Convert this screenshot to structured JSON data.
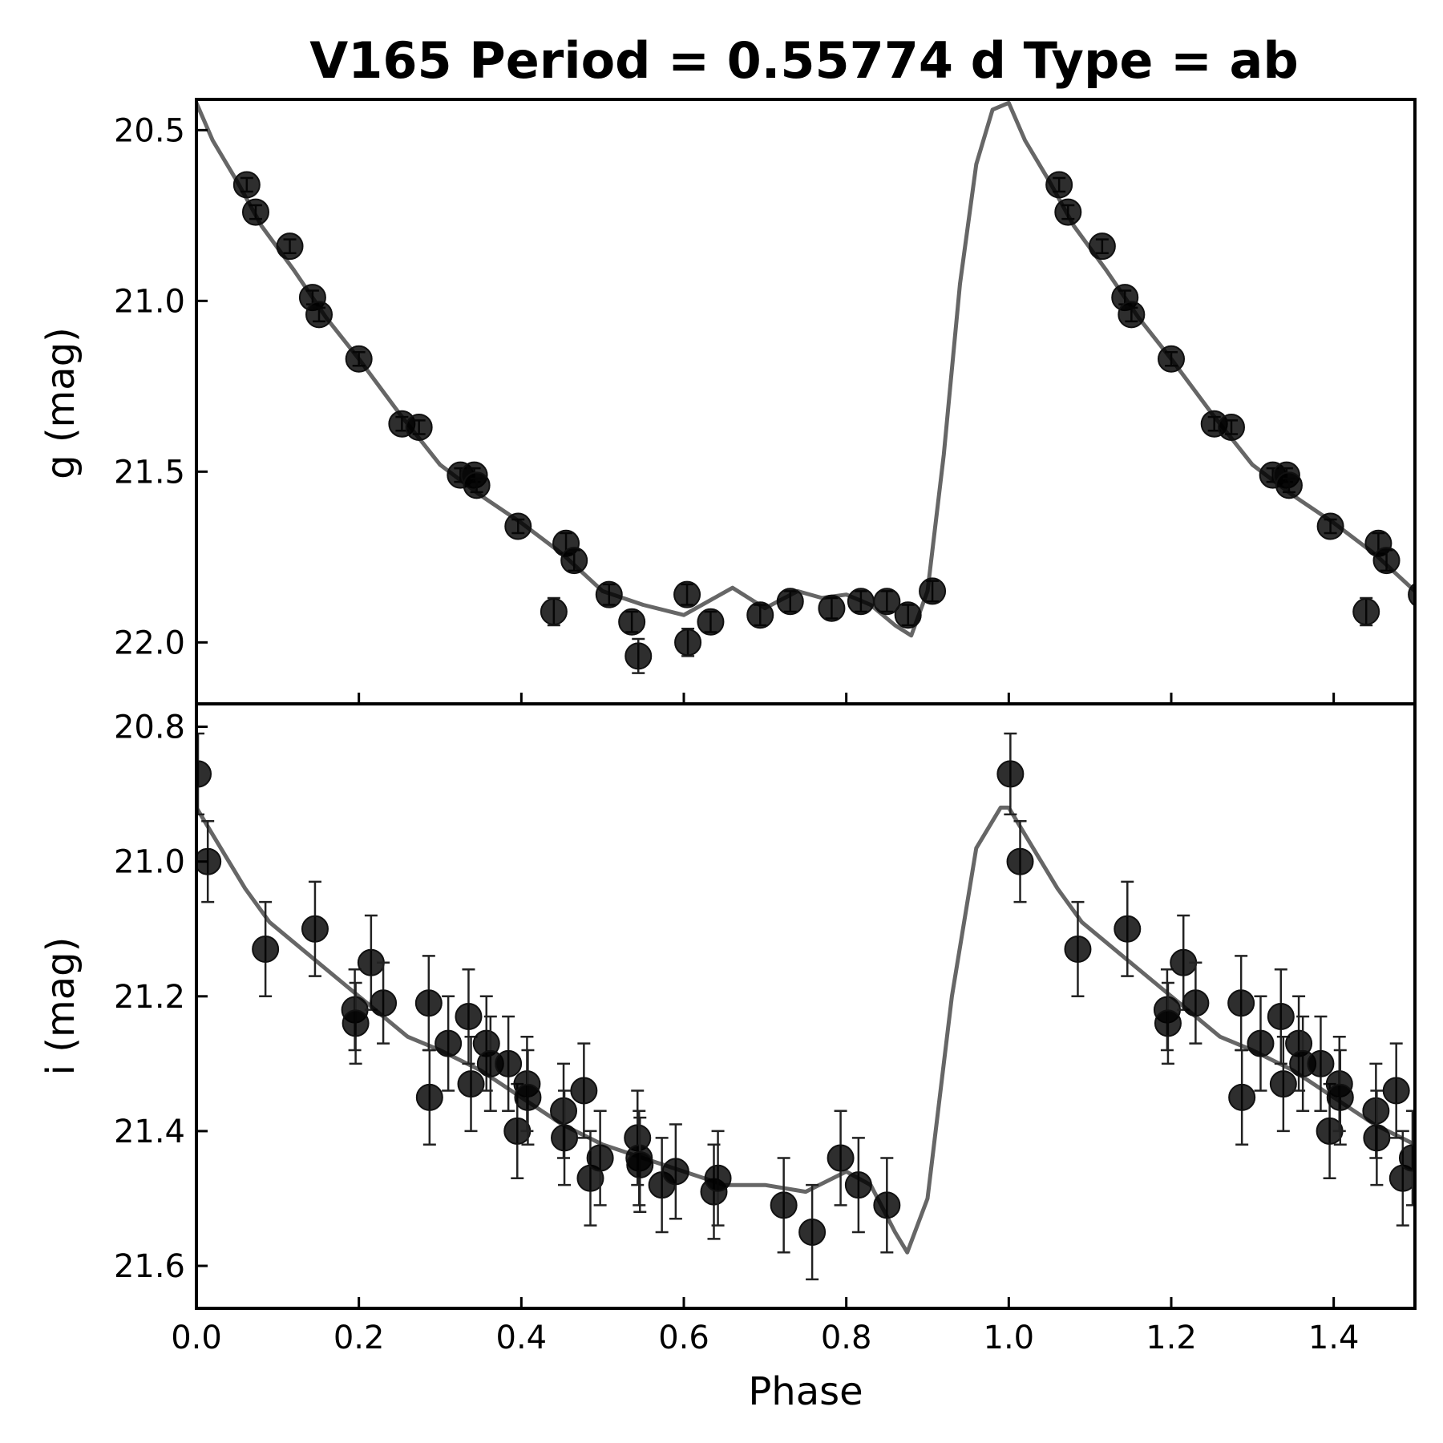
{
  "chart_data": [
    {
      "type": "scatter",
      "panel": "top",
      "title": "V165   Period = 0.55774 d   Type = ab",
      "ylabel": "g (mag)",
      "xlabel": "",
      "xlim": [
        0.0,
        1.5
      ],
      "ylim": [
        22.18,
        20.41
      ],
      "y_inverted": true,
      "yticks": [
        20.5,
        21.0,
        21.5,
        22.0
      ],
      "ytick_labels": [
        "20.5",
        "21.0",
        "21.5",
        "22.0"
      ],
      "xticks": [
        0.0,
        0.2,
        0.4,
        0.6,
        0.8,
        1.0,
        1.2,
        1.4
      ],
      "model_curve": {
        "phase": [
          0.0,
          0.02,
          0.05,
          0.08,
          0.12,
          0.16,
          0.2,
          0.25,
          0.3,
          0.35,
          0.4,
          0.45,
          0.5,
          0.55,
          0.6,
          0.63,
          0.66,
          0.7,
          0.74,
          0.77,
          0.8,
          0.83,
          0.86,
          0.88,
          0.9,
          0.92,
          0.94,
          0.96,
          0.98,
          1.0
        ],
        "mag": [
          20.42,
          20.53,
          20.65,
          20.78,
          20.91,
          21.05,
          21.17,
          21.33,
          21.48,
          21.57,
          21.65,
          21.74,
          21.85,
          21.89,
          21.92,
          21.88,
          21.84,
          21.9,
          21.85,
          21.87,
          21.86,
          21.89,
          21.95,
          21.98,
          21.85,
          21.45,
          20.95,
          20.6,
          20.44,
          20.42
        ]
      },
      "points": [
        {
          "phase": 0.062,
          "mag": 20.66,
          "err": 0.02
        },
        {
          "phase": 0.073,
          "mag": 20.74,
          "err": 0.02
        },
        {
          "phase": 0.115,
          "mag": 20.84,
          "err": 0.02
        },
        {
          "phase": 0.143,
          "mag": 20.99,
          "err": 0.02
        },
        {
          "phase": 0.151,
          "mag": 21.04,
          "err": 0.02
        },
        {
          "phase": 0.2,
          "mag": 21.17,
          "err": 0.02
        },
        {
          "phase": 0.253,
          "mag": 21.36,
          "err": 0.02
        },
        {
          "phase": 0.274,
          "mag": 21.37,
          "err": 0.02
        },
        {
          "phase": 0.325,
          "mag": 21.51,
          "err": 0.02
        },
        {
          "phase": 0.342,
          "mag": 21.51,
          "err": 0.02
        },
        {
          "phase": 0.345,
          "mag": 21.54,
          "err": 0.02
        },
        {
          "phase": 0.396,
          "mag": 21.66,
          "err": 0.02
        },
        {
          "phase": 0.44,
          "mag": 21.91,
          "err": 0.04
        },
        {
          "phase": 0.455,
          "mag": 21.71,
          "err": 0.03
        },
        {
          "phase": 0.465,
          "mag": 21.76,
          "err": 0.03
        },
        {
          "phase": 0.508,
          "mag": 21.86,
          "err": 0.03
        },
        {
          "phase": 0.536,
          "mag": 21.94,
          "err": 0.03
        },
        {
          "phase": 0.544,
          "mag": 22.04,
          "err": 0.05
        },
        {
          "phase": 0.604,
          "mag": 21.86,
          "err": 0.03
        },
        {
          "phase": 0.605,
          "mag": 22.0,
          "err": 0.04
        },
        {
          "phase": 0.633,
          "mag": 21.94,
          "err": 0.03
        },
        {
          "phase": 0.694,
          "mag": 21.92,
          "err": 0.03
        },
        {
          "phase": 0.731,
          "mag": 21.88,
          "err": 0.03
        },
        {
          "phase": 0.782,
          "mag": 21.9,
          "err": 0.03
        },
        {
          "phase": 0.818,
          "mag": 21.88,
          "err": 0.03
        },
        {
          "phase": 0.85,
          "mag": 21.88,
          "err": 0.03
        },
        {
          "phase": 0.876,
          "mag": 21.92,
          "err": 0.03
        },
        {
          "phase": 0.906,
          "mag": 21.85,
          "err": 0.03
        }
      ]
    },
    {
      "type": "scatter",
      "panel": "bottom",
      "title": "",
      "ylabel": "i (mag)",
      "xlabel": "Phase",
      "xlim": [
        0.0,
        1.5
      ],
      "ylim": [
        21.663,
        20.766
      ],
      "y_inverted": true,
      "yticks": [
        20.8,
        21.0,
        21.2,
        21.4,
        21.6
      ],
      "ytick_labels": [
        "20.8",
        "21.0",
        "21.2",
        "21.4",
        "21.6"
      ],
      "xticks": [
        0.0,
        0.2,
        0.4,
        0.6,
        0.8,
        1.0,
        1.2,
        1.4
      ],
      "xtick_labels": [
        "0.0",
        "0.2",
        "0.4",
        "0.6",
        "0.8",
        "1.0",
        "1.2",
        "1.4"
      ],
      "model_curve": {
        "phase": [
          0.0,
          0.03,
          0.06,
          0.09,
          0.12,
          0.15,
          0.18,
          0.22,
          0.26,
          0.3,
          0.35,
          0.4,
          0.45,
          0.5,
          0.55,
          0.6,
          0.65,
          0.7,
          0.75,
          0.8,
          0.83,
          0.86,
          0.875,
          0.9,
          0.93,
          0.96,
          0.99,
          1.0
        ],
        "mag": [
          20.92,
          20.98,
          21.04,
          21.09,
          21.12,
          21.15,
          21.18,
          21.22,
          21.26,
          21.28,
          21.31,
          21.35,
          21.39,
          21.42,
          21.44,
          21.46,
          21.48,
          21.48,
          21.49,
          21.46,
          21.48,
          21.55,
          21.58,
          21.5,
          21.2,
          20.98,
          20.92,
          20.92
        ]
      },
      "points": [
        {
          "phase": 0.002,
          "mag": 20.87,
          "err": 0.06
        },
        {
          "phase": 0.014,
          "mag": 21.0,
          "err": 0.06
        },
        {
          "phase": 0.085,
          "mag": 21.13,
          "err": 0.07
        },
        {
          "phase": 0.146,
          "mag": 21.1,
          "err": 0.07
        },
        {
          "phase": 0.195,
          "mag": 21.22,
          "err": 0.06
        },
        {
          "phase": 0.196,
          "mag": 21.24,
          "err": 0.06
        },
        {
          "phase": 0.215,
          "mag": 21.15,
          "err": 0.07
        },
        {
          "phase": 0.23,
          "mag": 21.21,
          "err": 0.06
        },
        {
          "phase": 0.286,
          "mag": 21.21,
          "err": 0.07
        },
        {
          "phase": 0.287,
          "mag": 21.35,
          "err": 0.07
        },
        {
          "phase": 0.31,
          "mag": 21.27,
          "err": 0.07
        },
        {
          "phase": 0.335,
          "mag": 21.23,
          "err": 0.07
        },
        {
          "phase": 0.338,
          "mag": 21.33,
          "err": 0.07
        },
        {
          "phase": 0.357,
          "mag": 21.27,
          "err": 0.07
        },
        {
          "phase": 0.362,
          "mag": 21.3,
          "err": 0.07
        },
        {
          "phase": 0.384,
          "mag": 21.3,
          "err": 0.07
        },
        {
          "phase": 0.395,
          "mag": 21.4,
          "err": 0.07
        },
        {
          "phase": 0.407,
          "mag": 21.33,
          "err": 0.07
        },
        {
          "phase": 0.408,
          "mag": 21.35,
          "err": 0.07
        },
        {
          "phase": 0.452,
          "mag": 21.37,
          "err": 0.07
        },
        {
          "phase": 0.453,
          "mag": 21.41,
          "err": 0.07
        },
        {
          "phase": 0.477,
          "mag": 21.34,
          "err": 0.07
        },
        {
          "phase": 0.485,
          "mag": 21.47,
          "err": 0.07
        },
        {
          "phase": 0.497,
          "mag": 21.44,
          "err": 0.07
        },
        {
          "phase": 0.543,
          "mag": 21.41,
          "err": 0.07
        },
        {
          "phase": 0.545,
          "mag": 21.44,
          "err": 0.07
        },
        {
          "phase": 0.546,
          "mag": 21.45,
          "err": 0.07
        },
        {
          "phase": 0.573,
          "mag": 21.48,
          "err": 0.07
        },
        {
          "phase": 0.59,
          "mag": 21.46,
          "err": 0.07
        },
        {
          "phase": 0.637,
          "mag": 21.49,
          "err": 0.07
        },
        {
          "phase": 0.642,
          "mag": 21.47,
          "err": 0.07
        },
        {
          "phase": 0.723,
          "mag": 21.51,
          "err": 0.07
        },
        {
          "phase": 0.758,
          "mag": 21.55,
          "err": 0.07
        },
        {
          "phase": 0.793,
          "mag": 21.44,
          "err": 0.07
        },
        {
          "phase": 0.815,
          "mag": 21.48,
          "err": 0.07
        },
        {
          "phase": 0.85,
          "mag": 21.51,
          "err": 0.07
        }
      ]
    }
  ]
}
